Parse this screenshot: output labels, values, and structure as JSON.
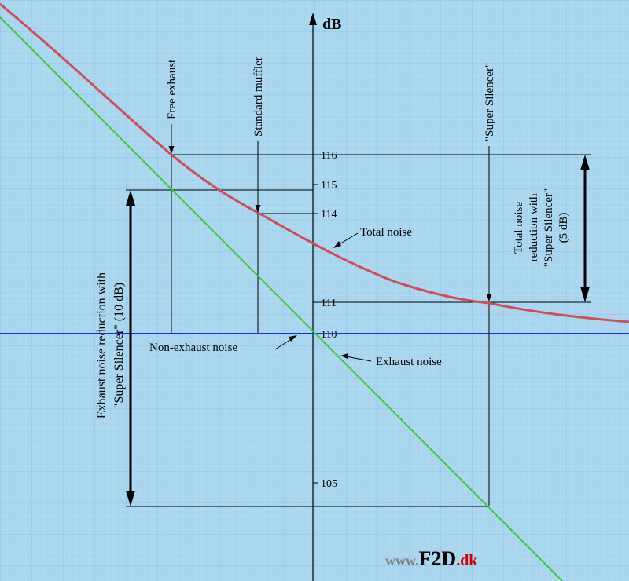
{
  "axis": {
    "label": "dB",
    "ticks": [
      {
        "value": 116,
        "label": "116"
      },
      {
        "value": 115,
        "label": "115"
      },
      {
        "value": 114,
        "label": "114"
      },
      {
        "value": 111,
        "label": "111"
      },
      {
        "value": 110,
        "label": "110"
      },
      {
        "value": 105,
        "label": "105"
      }
    ]
  },
  "labels": {
    "free_exhaust": "Free exhaust",
    "standard_muffler": "Standard muffler",
    "super_silencer": "\"Super Silencer\"",
    "total_noise": "Total noise",
    "non_exhaust_noise": "Non-exhaust noise",
    "exhaust_noise": "Exhaust noise",
    "total_reduction_line1": "Total noise",
    "total_reduction_line2": "reduction with",
    "total_reduction_line3": "\"Super Silencer\"",
    "total_reduction_line4": "(5 dB)",
    "exhaust_reduction_line1": "Exhaust noise reduction with",
    "exhaust_reduction_line2": "\"Super Silencer\"  (10 dB)"
  },
  "watermark": {
    "prefix": "www.",
    "brand": "F2D",
    "suffix": ".dk"
  },
  "colors": {
    "background": "#a9d6ee",
    "grid_minor": "#bfe2f4",
    "grid_major": "#8ec6e4",
    "total_noise": "#cc4f5a",
    "exhaust_noise": "#3cc83c",
    "non_exhaust_noise": "#1a2fd6",
    "ink": "#000000",
    "watermark_gray": "#7f7f7f",
    "watermark_red": "#cc0000"
  }
}
